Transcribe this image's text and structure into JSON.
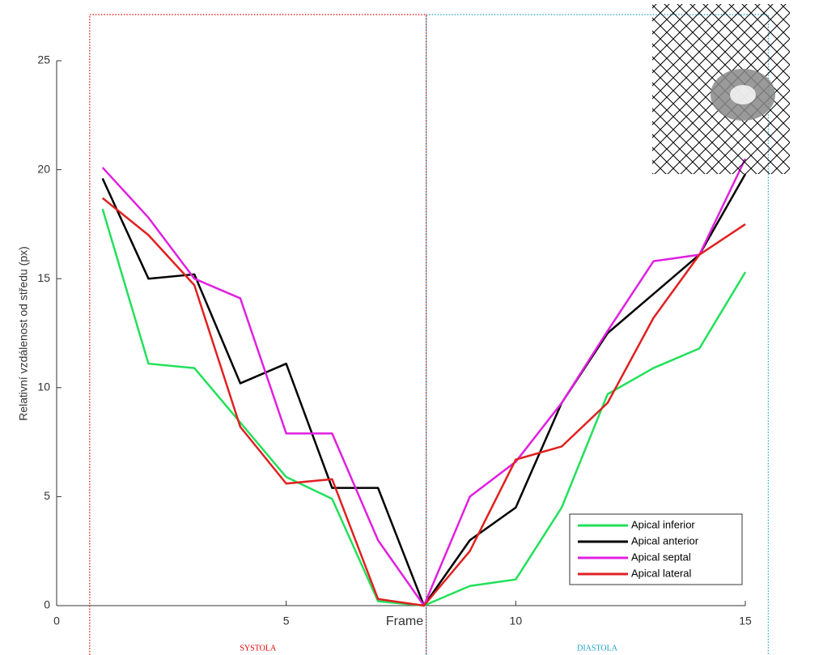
{
  "chart_data": {
    "type": "line",
    "y_label": "Relativní vzdálenost od středu (px)",
    "x_label": "Frame",
    "x": [
      1,
      2,
      3,
      4,
      5,
      6,
      7,
      8,
      9,
      10,
      11,
      12,
      13,
      14,
      15
    ],
    "series": [
      {
        "name": "Apical inferior",
        "color": "#22e05a",
        "values": [
          18.2,
          11.1,
          10.9,
          8.4,
          5.9,
          4.9,
          0.2,
          0,
          0.9,
          1.2,
          4.5,
          9.7,
          10.9,
          11.8,
          15.3
        ]
      },
      {
        "name": "Apical anterior",
        "color": "#000000",
        "values": [
          19.6,
          15.0,
          15.2,
          10.2,
          11.1,
          5.4,
          5.4,
          0,
          3.0,
          4.5,
          9.3,
          12.5,
          14.3,
          16.1,
          19.8
        ]
      },
      {
        "name": "Apical septal",
        "color": "#e020e0",
        "values": [
          20.1,
          17.8,
          15.0,
          14.1,
          7.9,
          7.9,
          3.0,
          0,
          5.0,
          6.6,
          9.3,
          12.6,
          15.8,
          16.1,
          20.5
        ]
      },
      {
        "name": "Apical lateral",
        "color": "#e02020",
        "values": [
          18.7,
          17.0,
          14.7,
          8.2,
          5.6,
          5.8,
          0.3,
          0,
          2.5,
          6.7,
          7.3,
          9.3,
          13.2,
          16.1,
          17.5
        ]
      }
    ],
    "regions": [
      {
        "label": "SYSTOLA",
        "color": "#e00000",
        "start": 0.72,
        "end": 8.05
      },
      {
        "label": "DIASTOLA",
        "color": "#1aa0c8",
        "start": 8.05,
        "end": 15.5
      }
    ],
    "xlim": [
      0,
      15
    ],
    "xticks": [
      0,
      5,
      10,
      15
    ],
    "ylim": [
      0,
      25
    ],
    "yticks": [
      0,
      5,
      10,
      15,
      20,
      25
    ],
    "legend": "lower right"
  }
}
